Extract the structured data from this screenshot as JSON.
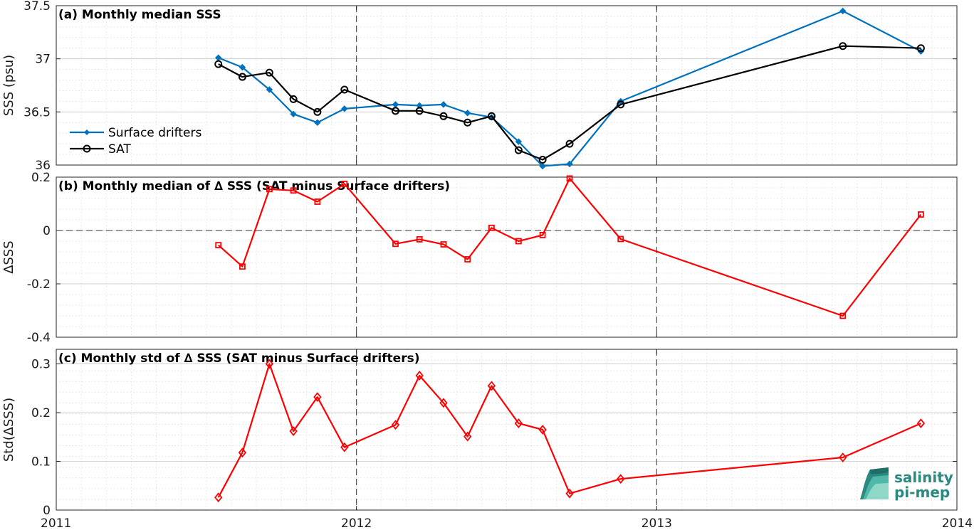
{
  "chart_data": [
    {
      "type": "line",
      "title": "(a) Monthly median SSS",
      "ylabel": "SSS (psu)",
      "xlim": [
        2011,
        2014
      ],
      "ylim": [
        36,
        37.5
      ],
      "yticks": [
        36,
        36.5,
        37,
        37.5
      ],
      "ytick_labels": [
        "36",
        "36.5",
        "37",
        "37.5"
      ],
      "grid": true,
      "legend": "left",
      "series": [
        {
          "name": "Surface drifters",
          "color": "#0072bd",
          "marker": "dot",
          "x": [
            2011.54,
            2011.62,
            2011.71,
            2011.79,
            2011.87,
            2011.96,
            2012.13,
            2012.21,
            2012.29,
            2012.37,
            2012.45,
            2012.54,
            2012.62,
            2012.71,
            2012.88,
            2013.62,
            2013.88
          ],
          "values": [
            37.01,
            36.92,
            36.71,
            36.48,
            36.4,
            36.53,
            36.57,
            36.56,
            36.57,
            36.49,
            36.45,
            36.22,
            35.99,
            36.01,
            36.6,
            37.45,
            37.07
          ]
        },
        {
          "name": "SAT",
          "color": "#000000",
          "marker": "circle",
          "x": [
            2011.54,
            2011.62,
            2011.71,
            2011.79,
            2011.87,
            2011.96,
            2012.13,
            2012.21,
            2012.29,
            2012.37,
            2012.45,
            2012.54,
            2012.62,
            2012.71,
            2012.88,
            2013.62,
            2013.88
          ],
          "values": [
            36.95,
            36.83,
            36.87,
            36.62,
            36.5,
            36.71,
            36.51,
            36.51,
            36.46,
            36.4,
            36.46,
            36.14,
            36.05,
            36.2,
            36.57,
            37.12,
            37.1
          ]
        }
      ]
    },
    {
      "type": "line",
      "title": "(b) Monthly median of ∆ SSS (SAT minus Surface drifters)",
      "ylabel": "∆SSS",
      "xlim": [
        2011,
        2014
      ],
      "ylim": [
        -0.4,
        0.2
      ],
      "yticks": [
        -0.4,
        -0.2,
        0,
        0.2
      ],
      "ytick_labels": [
        "-0.4",
        "-0.2",
        "0",
        "0.2"
      ],
      "grid": true,
      "zero_line": true,
      "series": [
        {
          "color": "#ff0000",
          "marker": "square",
          "x": [
            2011.54,
            2011.62,
            2011.71,
            2011.79,
            2011.87,
            2011.96,
            2012.13,
            2012.21,
            2012.29,
            2012.37,
            2012.45,
            2012.54,
            2012.62,
            2012.71,
            2012.88,
            2013.62,
            2013.88
          ],
          "values": [
            -0.055,
            -0.135,
            0.155,
            0.15,
            0.108,
            0.175,
            -0.05,
            -0.033,
            -0.052,
            -0.108,
            0.01,
            -0.04,
            -0.017,
            0.195,
            -0.032,
            -0.32,
            0.06
          ]
        }
      ]
    },
    {
      "type": "line",
      "title": "(c) Monthly std of ∆ SSS (SAT minus Surface drifters)",
      "ylabel": "Std(∆SSS)",
      "xlim": [
        2011,
        2014
      ],
      "ylim": [
        0,
        0.33
      ],
      "yticks": [
        0,
        0.1,
        0.2,
        0.3
      ],
      "ytick_labels": [
        "0",
        "0.1",
        "0.2",
        "0.3"
      ],
      "xticks": [
        2011,
        2012,
        2013,
        2014
      ],
      "xtick_labels": [
        "2011",
        "2012",
        "2013",
        "2014"
      ],
      "grid": true,
      "series": [
        {
          "color": "#ff0000",
          "marker": "diamond",
          "x": [
            2011.54,
            2011.62,
            2011.71,
            2011.79,
            2011.87,
            2011.96,
            2012.13,
            2012.21,
            2012.29,
            2012.37,
            2012.45,
            2012.54,
            2012.62,
            2012.71,
            2012.88,
            2013.62,
            2013.88
          ],
          "values": [
            0.026,
            0.118,
            0.3,
            0.162,
            0.232,
            0.129,
            0.175,
            0.276,
            0.22,
            0.151,
            0.255,
            0.178,
            0.165,
            0.034,
            0.064,
            0.108,
            0.178
          ]
        }
      ]
    }
  ],
  "logo": {
    "line1": "salinity",
    "line2": "pi-mep"
  }
}
